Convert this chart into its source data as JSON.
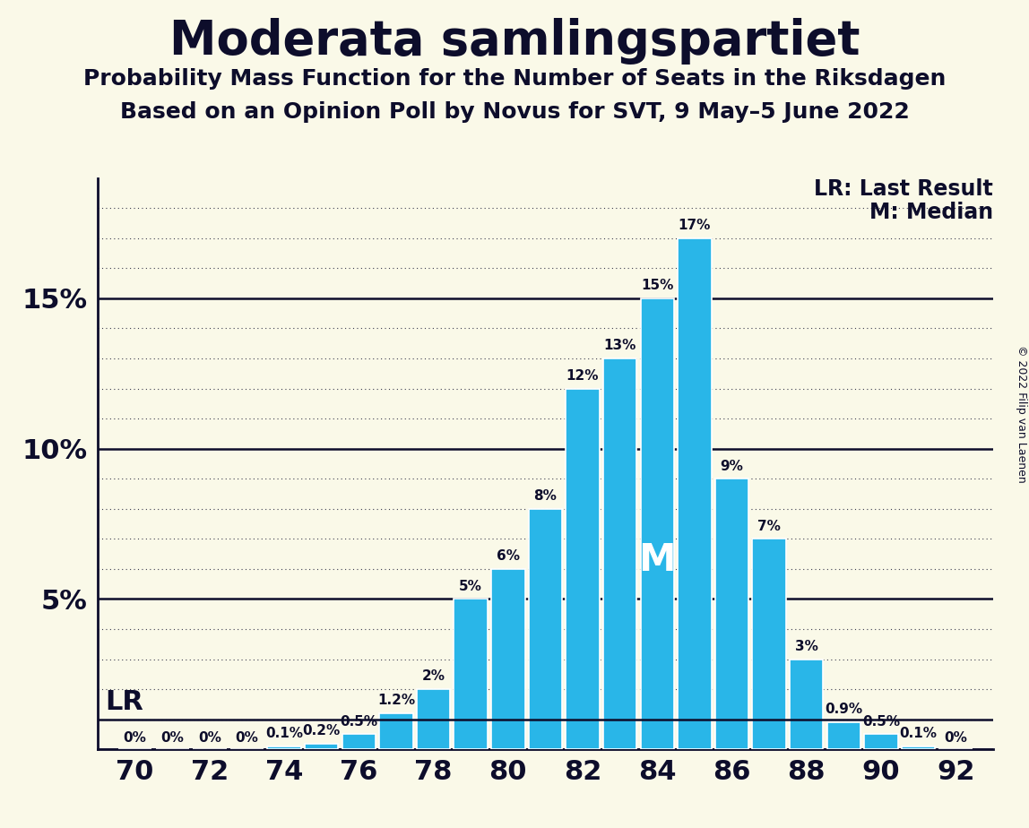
{
  "title": "Moderata samlingspartiet",
  "subtitle1": "Probability Mass Function for the Number of Seats in the Riksdagen",
  "subtitle2": "Based on an Opinion Poll by Novus for SVT, 9 May–5 June 2022",
  "copyright": "© 2022 Filip van Laenen",
  "legend_lr": "LR: Last Result",
  "legend_m": "M: Median",
  "background_color": "#FAF9E8",
  "bar_color": "#29B6E8",
  "bar_edge_color": "#FFFFFF",
  "axis_line_color": "#0D0D2B",
  "text_color": "#0D0D2B",
  "seats": [
    70,
    71,
    72,
    73,
    74,
    75,
    76,
    77,
    78,
    79,
    80,
    81,
    82,
    83,
    84,
    85,
    86,
    87,
    88,
    89,
    90,
    91,
    92
  ],
  "probabilities": [
    0.0,
    0.0,
    0.0,
    0.0,
    0.1,
    0.2,
    0.5,
    1.2,
    2.0,
    5.0,
    6.0,
    8.0,
    12.0,
    13.0,
    15.0,
    17.0,
    9.0,
    7.0,
    3.0,
    0.9,
    0.5,
    0.1,
    0.0
  ],
  "bar_labels": [
    "0%",
    "0%",
    "0%",
    "0%",
    "0.1%",
    "0.2%",
    "0.5%",
    "1.2%",
    "2%",
    "5%",
    "6%",
    "8%",
    "12%",
    "13%",
    "15%",
    "17%",
    "9%",
    "7%",
    "3%",
    "0.9%",
    "0.5%",
    "0.1%",
    "0%"
  ],
  "show_label": [
    true,
    true,
    true,
    true,
    true,
    true,
    true,
    true,
    true,
    true,
    true,
    true,
    true,
    true,
    true,
    true,
    true,
    true,
    true,
    true,
    true,
    true,
    true
  ],
  "median_seat": 84,
  "median_label": "M",
  "lr_y": 1.0,
  "lr_label": "LR",
  "xlim": [
    69.0,
    93.0
  ],
  "ylim": [
    0,
    19.0
  ],
  "yticks": [
    5,
    10,
    15
  ],
  "ytick_labels": [
    "5%",
    "10%",
    "15%"
  ],
  "xticks": [
    70,
    72,
    74,
    76,
    78,
    80,
    82,
    84,
    86,
    88,
    90,
    92
  ],
  "solid_yticks": [
    0,
    5,
    10,
    15
  ],
  "dotted_yticks": [
    1,
    2,
    3,
    4,
    6,
    7,
    8,
    9,
    11,
    12,
    13,
    14,
    16,
    17,
    18
  ],
  "bar_width": 0.9,
  "figsize": [
    11.48,
    9.24
  ],
  "dpi": 100,
  "title_fontsize": 38,
  "subtitle_fontsize": 18,
  "tick_fontsize": 22,
  "label_fontsize": 11,
  "legend_fontsize": 17,
  "lr_fontsize": 22,
  "median_fontsize": 30
}
